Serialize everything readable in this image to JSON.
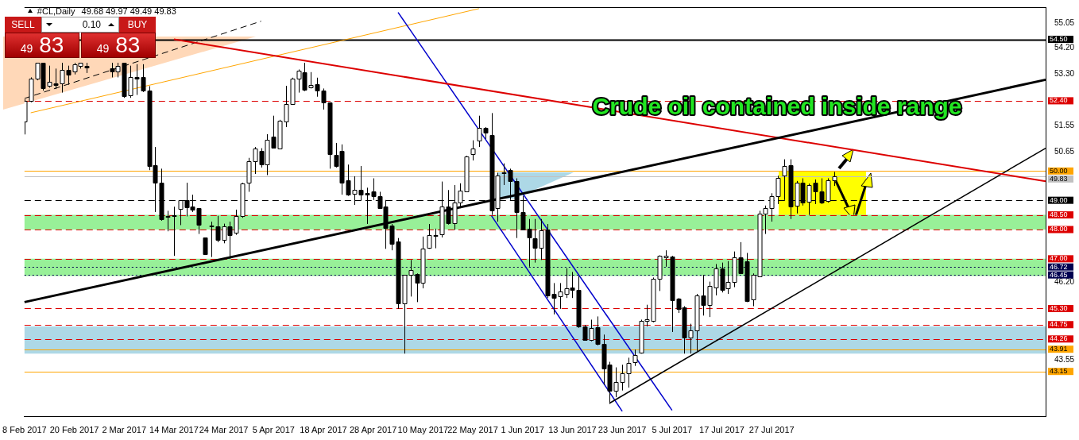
{
  "chart_data": {
    "type": "candlestick",
    "title": "#CL,Daily",
    "subtitle": "49.68 49.97 49.49 49.83",
    "categories": [
      "8 Feb 2017",
      null,
      null,
      null,
      null,
      null,
      null,
      null,
      "20 Feb 2017",
      null,
      null,
      null,
      null,
      null,
      null,
      null,
      "2 Mar 2017",
      null,
      null,
      null,
      null,
      null,
      null,
      null,
      "14 Mar 2017",
      null,
      null,
      null,
      null,
      null,
      null,
      null,
      "24 Mar 2017",
      null,
      null,
      null,
      null,
      null,
      null,
      null,
      "5 Apr 2017",
      null,
      null,
      null,
      null,
      null,
      null,
      null,
      "18 Apr 2017",
      null,
      null,
      null,
      null,
      null,
      null,
      null,
      "28 Apr 2017",
      null,
      null,
      null,
      null,
      null,
      null,
      null,
      "10 May 2017",
      null,
      null,
      null,
      null,
      null,
      null,
      null,
      "22 May 2017",
      null,
      null,
      null,
      null,
      null,
      null,
      null,
      "1 Jun 2017",
      null,
      null,
      null,
      null,
      null,
      null,
      null,
      "13 Jun 2017",
      null,
      null,
      null,
      null,
      null,
      null,
      null,
      "23 Jun 2017",
      null,
      null,
      null,
      null,
      null,
      null,
      null,
      "5 Jul 2017",
      null,
      null,
      null,
      null,
      null,
      null,
      null,
      "17 Jul 2017",
      null,
      null,
      null,
      null,
      null,
      null,
      null,
      "27 Jul 2017",
      null,
      null,
      null,
      null,
      null,
      null,
      null,
      null,
      null,
      null,
      null,
      null,
      null,
      null,
      null,
      null,
      null,
      null,
      null,
      null,
      null,
      null,
      null,
      null,
      null,
      null,
      null,
      null,
      null,
      null,
      null,
      null,
      null,
      null,
      null,
      null,
      null,
      null,
      null,
      null,
      null,
      null,
      null,
      null
    ],
    "ohlc": [
      [
        51.7,
        52.45,
        51.25,
        52.4
      ],
      [
        52.4,
        53.2,
        52.35,
        53.15
      ],
      [
        53.15,
        53.7,
        53.1,
        53.7
      ],
      [
        53.7,
        53.7,
        52.75,
        52.82
      ],
      [
        52.9,
        53.6,
        52.85,
        53.05
      ],
      [
        53.0,
        53.5,
        52.8,
        52.95
      ],
      [
        53.0,
        53.7,
        52.68,
        53.45
      ],
      [
        53.45,
        53.6,
        52.95,
        53.3
      ],
      [
        53.4,
        53.7,
        53.3,
        53.65
      ],
      [
        53.6,
        53.7,
        53.5,
        53.7
      ],
      [
        53.6,
        53.7,
        53.35,
        53.55
      ],
      null,
      null,
      null,
      [
        53.5,
        53.7,
        53.2,
        53.4
      ],
      [
        53.4,
        53.7,
        53.2,
        53.6
      ],
      [
        53.7,
        53.7,
        52.5,
        52.55
      ],
      [
        52.6,
        53.6,
        52.5,
        53.2
      ],
      [
        53.2,
        53.65,
        52.6,
        53.15
      ],
      [
        53.2,
        53.65,
        52.7,
        52.75
      ],
      [
        52.75,
        52.9,
        50.03,
        50.17
      ],
      [
        50.2,
        50.82,
        48.6,
        49.6
      ],
      [
        49.6,
        50.08,
        48.3,
        48.35
      ],
      [
        48.47,
        48.64,
        47.94,
        48.45
      ],
      [
        48.45,
        48.78,
        47.1,
        48.5
      ],
      [
        48.7,
        49.0,
        48.15,
        49.0
      ],
      [
        49.0,
        49.6,
        48.45,
        48.75
      ],
      [
        48.78,
        49.19,
        48.6,
        48.68
      ],
      [
        48.72,
        48.72,
        47.85,
        48.17
      ],
      [
        47.72,
        47.72,
        47.17,
        47.17
      ],
      [
        48.13,
        48.27,
        47.06,
        48.1
      ],
      [
        48.12,
        48.47,
        47.57,
        47.66
      ],
      [
        47.66,
        48.2,
        47.53,
        48.12
      ],
      [
        48.12,
        48.27,
        46.99,
        47.82
      ],
      [
        47.9,
        48.68,
        47.82,
        48.45
      ],
      [
        48.45,
        49.6,
        48.4,
        49.58
      ],
      [
        49.6,
        50.45,
        49.29,
        50.33
      ],
      [
        50.33,
        50.82,
        49.9,
        50.78
      ],
      [
        50.68,
        50.78,
        50.12,
        50.22
      ],
      [
        50.22,
        51.26,
        49.86,
        51.08
      ],
      [
        51.17,
        51.89,
        50.79,
        50.79
      ],
      [
        50.78,
        51.75,
        50.78,
        51.73
      ],
      [
        51.7,
        52.91,
        51.5,
        52.28
      ],
      [
        52.3,
        53.19,
        52.28,
        53.15
      ],
      [
        53.15,
        53.47,
        52.68,
        53.42
      ],
      [
        53.38,
        53.7,
        52.73,
        52.77
      ],
      [
        52.87,
        53.38,
        52.82,
        52.93
      ],
      [
        52.96,
        53.19,
        52.54,
        52.74
      ],
      [
        52.74,
        52.82,
        52.1,
        52.35
      ],
      [
        52.35,
        52.35,
        50.08,
        50.57
      ],
      [
        50.54,
        50.96,
        50.12,
        50.17
      ],
      [
        50.68,
        50.91,
        49.19,
        49.61
      ],
      [
        49.68,
        50.22,
        49.15,
        49.19
      ],
      [
        49.22,
        49.82,
        48.84,
        49.35
      ],
      [
        49.35,
        50.17,
        49.0,
        49.19
      ],
      [
        49.24,
        49.43,
        48.19,
        49.2
      ],
      [
        49.29,
        49.75,
        49.01,
        49.15
      ],
      [
        49.15,
        49.29,
        48.73,
        48.73
      ],
      [
        48.78,
        49.01,
        47.34,
        48.06
      ],
      [
        48.13,
        48.19,
        47.29,
        47.52
      ],
      [
        47.6,
        47.71,
        45.29,
        45.48
      ],
      [
        45.48,
        46.45,
        43.76,
        46.45
      ],
      [
        46.45,
        46.96,
        45.71,
        46.61
      ],
      [
        46.47,
        46.5,
        45.52,
        46.17
      ],
      [
        46.17,
        47.76,
        45.99,
        47.34
      ],
      [
        47.38,
        48.19,
        47.34,
        47.8
      ],
      [
        47.8,
        48.03,
        47.36,
        47.8
      ],
      [
        47.85,
        49.64,
        47.73,
        48.78
      ],
      [
        48.8,
        49.35,
        48.17,
        48.22
      ],
      [
        48.22,
        49.52,
        47.99,
        48.92
      ],
      [
        48.92,
        49.58,
        48.73,
        49.33
      ],
      [
        49.29,
        50.52,
        49.29,
        50.5
      ],
      [
        50.59,
        51.05,
        50.36,
        50.78
      ],
      [
        51.05,
        51.89,
        50.82,
        51.47
      ],
      [
        51.47,
        51.5,
        51.1,
        51.3
      ],
      [
        51.24,
        51.98,
        48.5,
        48.66
      ],
      [
        48.73,
        49.94,
        48.27,
        49.84
      ],
      [
        49.96,
        50.26,
        49.52,
        49.96
      ],
      [
        50.03,
        50.08,
        49.01,
        49.66
      ],
      [
        49.66,
        49.75,
        47.71,
        48.59
      ],
      [
        48.59,
        49.15,
        47.99,
        48.0
      ],
      [
        48.03,
        48.36,
        46.73,
        47.73
      ],
      [
        47.71,
        48.36,
        46.87,
        47.38
      ],
      [
        47.38,
        48.36,
        46.96,
        47.97
      ],
      [
        47.99,
        48.19,
        45.66,
        45.76
      ],
      [
        45.8,
        46.17,
        45.1,
        45.66
      ],
      [
        45.71,
        46.17,
        45.29,
        45.89
      ],
      [
        45.8,
        46.68,
        45.66,
        45.99
      ],
      [
        46.03,
        46.55,
        45.66,
        45.94
      ],
      [
        45.94,
        46.41,
        44.64,
        44.69
      ],
      [
        44.69,
        44.74,
        44.22,
        44.22
      ],
      [
        44.22,
        44.92,
        44.18,
        44.64
      ],
      [
        44.66,
        45.03,
        44.04,
        44.08
      ],
      [
        44.08,
        44.41,
        42.69,
        43.24
      ],
      [
        43.38,
        43.48,
        42.04,
        42.5
      ],
      [
        42.5,
        43.29,
        42.27,
        42.78
      ],
      [
        42.78,
        43.38,
        42.5,
        43.1
      ],
      [
        43.1,
        43.62,
        42.6,
        43.45
      ],
      [
        43.48,
        43.9,
        43.34,
        43.71
      ],
      [
        43.8,
        44.92,
        43.76,
        44.87
      ],
      [
        44.87,
        45.43,
        44.69,
        44.92
      ],
      [
        44.87,
        46.36,
        44.83,
        46.31
      ],
      [
        46.31,
        47.12,
        45.9,
        47.1
      ],
      [
        47.06,
        47.29,
        46.73,
        47.1
      ],
      [
        47.08,
        47.1,
        44.5,
        45.59
      ],
      [
        45.64,
        45.66,
        45.15,
        45.29
      ],
      [
        45.34,
        45.38,
        43.76,
        44.32
      ],
      [
        44.32,
        44.78,
        43.76,
        44.55
      ],
      [
        44.55,
        45.8,
        43.85,
        45.76
      ],
      [
        45.76,
        46.45,
        45.06,
        45.43
      ],
      [
        45.43,
        46.22,
        45.01,
        46.08
      ],
      [
        46.03,
        46.82,
        45.75,
        46.68
      ],
      [
        46.68,
        46.87,
        45.85,
        45.94
      ],
      [
        45.99,
        46.92,
        45.8,
        46.22
      ],
      [
        46.22,
        47.25,
        46.03,
        47.06
      ],
      [
        47.06,
        47.57,
        46.5,
        46.5
      ],
      [
        46.92,
        47.2,
        45.52,
        45.55
      ],
      [
        45.62,
        46.5,
        45.38,
        46.45
      ],
      [
        46.41,
        48.64,
        46.41,
        48.55
      ],
      [
        48.55,
        48.82,
        47.85,
        48.73
      ],
      [
        48.73,
        49.24,
        48.27,
        49.15
      ],
      [
        49.15,
        49.84,
        48.87,
        49.77
      ],
      [
        49.84,
        50.4,
        49.01,
        50.17
      ],
      [
        50.19,
        50.4,
        48.36,
        48.78
      ],
      [
        48.82,
        49.66,
        48.55,
        49.59
      ],
      [
        49.59,
        49.75,
        48.82,
        48.92
      ],
      [
        48.96,
        49.57,
        48.5,
        49.52
      ],
      [
        49.59,
        49.71,
        48.87,
        49.29
      ],
      [
        49.29,
        49.75,
        48.87,
        48.92
      ],
      [
        48.99,
        49.75,
        48.92,
        49.68
      ],
      [
        49.68,
        49.97,
        49.49,
        49.83
      ],
      null,
      null,
      null,
      null,
      null,
      null,
      null,
      null,
      null,
      null,
      null,
      null,
      null,
      null,
      null,
      null,
      null,
      null,
      null,
      null,
      null,
      null,
      null,
      null,
      null,
      null,
      null,
      null,
      null,
      null,
      null,
      null,
      null,
      null
    ],
    "series": [
      {
        "type": "line",
        "color": "#000000",
        "values": [
          45.52,
          null,
          null,
          null,
          null,
          null,
          null,
          null,
          null,
          null,
          null,
          null,
          null,
          null,
          null,
          null,
          null,
          null,
          null,
          null,
          null,
          null,
          null,
          null,
          null,
          null,
          null,
          null,
          null,
          null,
          null,
          null,
          null,
          null,
          null,
          null,
          null,
          null,
          null,
          null,
          null,
          null,
          null,
          null,
          null,
          null,
          null,
          null,
          null,
          null,
          null,
          null,
          null,
          null,
          null,
          null,
          null,
          null,
          null,
          null,
          null,
          null,
          null,
          null,
          null,
          null,
          null,
          null,
          null,
          null,
          null,
          null,
          null,
          null,
          null,
          null,
          null,
          null,
          null,
          null,
          null,
          null,
          null,
          null,
          null,
          null,
          null,
          null,
          null,
          null,
          null,
          null,
          null,
          null,
          null,
          null,
          null,
          null,
          null,
          null,
          null,
          null,
          null,
          null,
          null,
          null,
          null,
          null,
          null,
          null,
          null,
          null,
          null,
          null,
          null,
          null,
          null,
          null,
          null,
          null,
          null,
          null,
          null,
          null,
          null,
          null,
          null,
          null,
          null,
          null,
          null,
          null,
          null,
          null,
          null,
          null,
          null,
          null,
          null,
          null,
          null,
          null,
          null,
          null,
          null,
          null,
          null,
          null,
          null,
          null,
          null,
          null,
          null,
          null,
          null,
          null,
          null,
          null,
          null,
          null,
          null,
          null,
          null,
          null,
          53.12
        ]
      },
      {
        "type": "line",
        "color": "#dd0000",
        "values": [
          null,
          null,
          null,
          null,
          null,
          null,
          null,
          null,
          null,
          null,
          null,
          null,
          null,
          null,
          null,
          null,
          null,
          null,
          null,
          null,
          null,
          null,
          null,
          null,
          54.5,
          null,
          null,
          null,
          null,
          null,
          null,
          null,
          null,
          null,
          null,
          null,
          null,
          null,
          null,
          null,
          null,
          null,
          null,
          null,
          null,
          null,
          null,
          null,
          null,
          null,
          null,
          null,
          null,
          null,
          null,
          null,
          null,
          null,
          null,
          null,
          null,
          null,
          null,
          null,
          null,
          null,
          null,
          null,
          null,
          null,
          null,
          null,
          null,
          null,
          null,
          null,
          null,
          null,
          null,
          null,
          null,
          null,
          null,
          null,
          null,
          null,
          null,
          null,
          null,
          null,
          null,
          null,
          null,
          null,
          null,
          null,
          null,
          null,
          null,
          null,
          null,
          null,
          null,
          null,
          null,
          null,
          null,
          null,
          null,
          null,
          null,
          null,
          null,
          null,
          null,
          null,
          null,
          null,
          null,
          null,
          null,
          null,
          null,
          null,
          null,
          null,
          null,
          null,
          null,
          null,
          null,
          null,
          null,
          null,
          null,
          null,
          null,
          null,
          null,
          null,
          null,
          null,
          null,
          null,
          null,
          null,
          null,
          null,
          null,
          null,
          null,
          null,
          null,
          null,
          null,
          null,
          null,
          null,
          null,
          null,
          null,
          null,
          null,
          null,
          49.65
        ]
      },
      {
        "type": "line",
        "color": "#000000",
        "values": [
          null,
          null,
          null,
          null,
          null,
          null,
          null,
          null,
          null,
          null,
          null,
          null,
          null,
          null,
          null,
          null,
          null,
          null,
          null,
          null,
          null,
          null,
          null,
          null,
          null,
          null,
          null,
          null,
          null,
          null,
          null,
          null,
          null,
          null,
          null,
          null,
          null,
          null,
          null,
          null,
          null,
          null,
          null,
          null,
          null,
          null,
          null,
          null,
          null,
          null,
          null,
          null,
          null,
          null,
          null,
          null,
          null,
          null,
          null,
          null,
          null,
          null,
          null,
          null,
          null,
          null,
          null,
          null,
          null,
          null,
          null,
          null,
          null,
          null,
          null,
          null,
          null,
          null,
          null,
          null,
          null,
          null,
          null,
          null,
          null,
          null,
          null,
          null,
          null,
          null,
          null,
          null,
          null,
          null,
          42.07,
          null,
          null,
          null,
          null,
          null,
          null,
          null,
          null,
          null,
          null,
          null,
          null,
          null,
          null,
          null,
          null,
          null,
          null,
          null,
          null,
          null,
          null,
          null,
          null,
          null,
          null,
          null,
          null,
          null,
          null,
          null,
          null,
          null,
          null,
          null,
          null,
          null,
          null,
          null,
          null,
          null,
          null,
          null,
          null,
          null,
          null,
          null,
          null,
          null,
          null,
          null,
          null,
          null,
          null,
          null,
          null,
          null,
          null,
          null,
          null,
          null,
          null,
          null,
          null,
          null,
          null,
          null,
          null,
          null,
          50.78
        ]
      },
      {
        "type": "line",
        "color": "#0000cc",
        "values": [
          null,
          null,
          null,
          null,
          null,
          null,
          null,
          null,
          null,
          null,
          null,
          null,
          null,
          null,
          null,
          null,
          null,
          null,
          null,
          null,
          null,
          null,
          null,
          null,
          null,
          null,
          null,
          null,
          null,
          null,
          null,
          null,
          null,
          null,
          null,
          null,
          null,
          null,
          null,
          null,
          null,
          null,
          null,
          null,
          null,
          null,
          null,
          null,
          null,
          null,
          null,
          null,
          null,
          null,
          null,
          null,
          null,
          null,
          null,
          null,
          55.42,
          null,
          null,
          null,
          null,
          null,
          null,
          null,
          null,
          null,
          null,
          null,
          null,
          null,
          null,
          null,
          null,
          null,
          null,
          null,
          null,
          null,
          null,
          null,
          null,
          null,
          null,
          null,
          null,
          null,
          null,
          null,
          null,
          null,
          null,
          null,
          null,
          null,
          null,
          null,
          null,
          null,
          null,
          null,
          41.82,
          null,
          null,
          null,
          null,
          null,
          null,
          null,
          null,
          null,
          null,
          null,
          null,
          null,
          null,
          null,
          null,
          null,
          null,
          null,
          null,
          null,
          null,
          null,
          null,
          null,
          null,
          null,
          null,
          null,
          null,
          null,
          null,
          null,
          null,
          null,
          null,
          null,
          null,
          null,
          null,
          null,
          null,
          null,
          null,
          null,
          null,
          null,
          null,
          null,
          null,
          null,
          null,
          null,
          null,
          null,
          null,
          null,
          null,
          null,
          null
        ]
      },
      {
        "type": "line",
        "color": "#0000cc",
        "values": [
          null,
          null,
          null,
          null,
          null,
          null,
          null,
          null,
          null,
          null,
          null,
          null,
          null,
          null,
          null,
          null,
          null,
          null,
          null,
          null,
          null,
          null,
          null,
          null,
          null,
          null,
          null,
          null,
          null,
          null,
          null,
          null,
          null,
          null,
          null,
          null,
          null,
          null,
          null,
          null,
          null,
          null,
          null,
          null,
          null,
          null,
          null,
          null,
          null,
          null,
          null,
          null,
          null,
          null,
          null,
          null,
          null,
          null,
          null,
          null,
          null,
          null,
          null,
          null,
          null,
          null,
          null,
          null,
          null,
          null,
          null,
          null,
          null,
          null,
          null,
          48.47,
          null,
          null,
          null,
          null,
          null,
          null,
          null,
          null,
          null,
          null,
          null,
          null,
          null,
          null,
          null,
          null,
          null,
          null,
          null,
          null,
          41.79,
          null,
          null,
          null,
          null,
          null,
          null,
          null,
          null,
          null,
          null,
          null,
          null,
          null,
          null,
          null,
          null,
          null,
          null,
          null,
          null,
          null,
          null,
          null,
          null,
          null,
          null,
          null,
          null,
          null,
          null,
          null,
          null,
          null,
          null,
          null,
          null,
          null,
          null,
          null,
          null,
          null,
          null,
          null,
          null,
          null,
          null,
          null,
          null,
          null,
          null,
          null,
          null,
          null,
          null,
          null,
          null,
          null,
          null,
          null,
          null,
          null,
          null,
          null,
          null,
          null,
          null,
          null,
          null
        ]
      },
      {
        "type": "line",
        "color": "#ffa500",
        "values": [
          null,
          51.99,
          null,
          null,
          null,
          null,
          null,
          null,
          null,
          null,
          null,
          null,
          null,
          null,
          null,
          null,
          null,
          null,
          null,
          null,
          null,
          null,
          null,
          null,
          null,
          null,
          null,
          null,
          null,
          null,
          null,
          null,
          null,
          null,
          null,
          null,
          null,
          null,
          null,
          null,
          null,
          null,
          null,
          null,
          null,
          null,
          null,
          null,
          null,
          null,
          null,
          null,
          null,
          null,
          null,
          null,
          null,
          null,
          null,
          null,
          null,
          null,
          null,
          null,
          null,
          null,
          null,
          null,
          null,
          null,
          null,
          null,
          null,
          55.55,
          null,
          null,
          null,
          null,
          null,
          null,
          null,
          null,
          null,
          null,
          null,
          null,
          null,
          null,
          null,
          null,
          null,
          null,
          null,
          null,
          null,
          null,
          null,
          null,
          null,
          null,
          null,
          null,
          null,
          null,
          null,
          null,
          null,
          null,
          null,
          null,
          null,
          null,
          null,
          null,
          null,
          null,
          null,
          null,
          null,
          null,
          null,
          null,
          null,
          null,
          null,
          null,
          null,
          null,
          null,
          null,
          null,
          null,
          null,
          null,
          null,
          null,
          null,
          null,
          null,
          null,
          null,
          null,
          null,
          null,
          null,
          null,
          null,
          null,
          null,
          null,
          null,
          null,
          null,
          null,
          null,
          null,
          null,
          null,
          null,
          null,
          null,
          null,
          null,
          null,
          null
        ]
      },
      {
        "type": "line",
        "color": "#000000",
        "line_style": "dashed",
        "values": [
          52.48,
          null,
          null,
          null,
          null,
          null,
          null,
          null,
          null,
          null,
          null,
          null,
          null,
          null,
          null,
          null,
          null,
          null,
          null,
          null,
          null,
          null,
          null,
          null,
          null,
          null,
          null,
          null,
          null,
          null,
          null,
          null,
          null,
          null,
          null,
          null,
          null,
          null,
          55.12,
          null,
          null,
          null,
          null,
          null,
          null,
          null,
          null,
          null,
          null,
          null,
          null,
          null,
          null,
          null,
          null,
          null,
          null,
          null,
          null,
          null,
          null,
          null,
          null,
          null,
          null,
          null,
          null,
          null,
          null,
          null,
          null,
          null,
          null,
          null,
          null,
          null,
          null,
          null,
          null,
          null,
          null,
          null,
          null,
          null,
          null,
          null,
          null,
          null,
          null,
          null,
          null,
          null,
          null,
          null,
          null,
          null,
          null,
          null,
          null,
          null,
          null,
          null,
          null,
          null,
          null,
          null,
          null,
          null,
          null,
          null,
          null,
          null,
          null,
          null,
          null,
          null,
          null,
          null,
          null,
          null,
          null,
          null,
          null,
          null,
          null,
          null,
          null,
          null,
          null,
          null,
          null,
          null,
          null,
          null,
          null,
          null,
          null,
          null,
          null,
          null,
          null,
          null,
          null,
          null,
          null,
          null,
          null,
          null,
          null,
          null,
          null,
          null,
          null,
          null,
          null,
          null,
          null,
          null,
          null,
          null,
          null,
          null,
          null,
          null,
          null
        ]
      }
    ],
    "ylim": [
      41.6,
      55.6
    ],
    "yticks": [
      55.05,
      {
        "value": 54.2,
        "label": "54.20"
      },
      {
        "value": 53.3,
        "label": "53.30"
      },
      51.55,
      50.65,
      {
        "value": 46.2,
        "label": "46.20"
      },
      43.55
    ],
    "ref_lines": [
      {
        "axis": "y",
        "value": 54.5,
        "label": "54.50",
        "color": "#000000",
        "line_style": "solid"
      },
      {
        "axis": "y",
        "value": 52.4,
        "label": "52.40",
        "color": "#dd0000",
        "line_style": "dashed"
      },
      {
        "axis": "y",
        "value": 50.0,
        "label": "50.00",
        "color": "#ffa500",
        "line_style": "solid"
      },
      {
        "axis": "y",
        "value": 49.83,
        "label": "49.83",
        "color": "#c0c0c0",
        "line_style": "solid"
      },
      {
        "axis": "y",
        "value": 49.0,
        "label": "49.00",
        "color": "#000000",
        "line_style": "dashed"
      },
      {
        "axis": "y",
        "value": 48.5,
        "label": "48.50",
        "color": "#dd0000",
        "line_style": "dashed"
      },
      {
        "axis": "y",
        "value": 48.0,
        "label": "48.00",
        "color": "#dd0000",
        "line_style": "dashed"
      },
      {
        "axis": "y",
        "value": 47.0,
        "label": "47.00",
        "color": "#dd0000",
        "line_style": "dashed"
      },
      {
        "axis": "y",
        "value": 46.72,
        "label": "46.72",
        "color": "#000050",
        "line_style": "dotted"
      },
      {
        "axis": "y",
        "value": 46.45,
        "label": "46.45",
        "color": "#000050",
        "line_style": "dotted"
      },
      {
        "axis": "y",
        "value": 45.3,
        "label": "45.30",
        "color": "#dd0000",
        "line_style": "dashed"
      },
      {
        "axis": "y",
        "value": 44.75,
        "label": "44.75",
        "color": "#dd0000",
        "line_style": "dashed"
      },
      {
        "axis": "y",
        "value": 44.26,
        "label": "44.26",
        "color": "#dd0000",
        "line_style": "dashed"
      },
      {
        "axis": "y",
        "value": 43.91,
        "label": "43.91",
        "color": "#ffa500",
        "line_style": "solid"
      },
      {
        "axis": "y",
        "value": 43.15,
        "label": "43.15",
        "color": "#ffa500",
        "line_style": "solid"
      }
    ],
    "bands": [
      {
        "axis": "y",
        "from": 48.0,
        "to": 48.5,
        "color": "#98f098"
      },
      {
        "axis": "y",
        "from": 46.41,
        "to": 47.0,
        "color": "#98f098"
      },
      {
        "axis": "y",
        "from": 43.76,
        "to": 44.69,
        "color": "#add8e6"
      }
    ],
    "annotations": [
      "Crude oil contained inside range",
      "SELL",
      "0.10",
      "BUY",
      "49 83",
      "49 83"
    ]
  }
}
